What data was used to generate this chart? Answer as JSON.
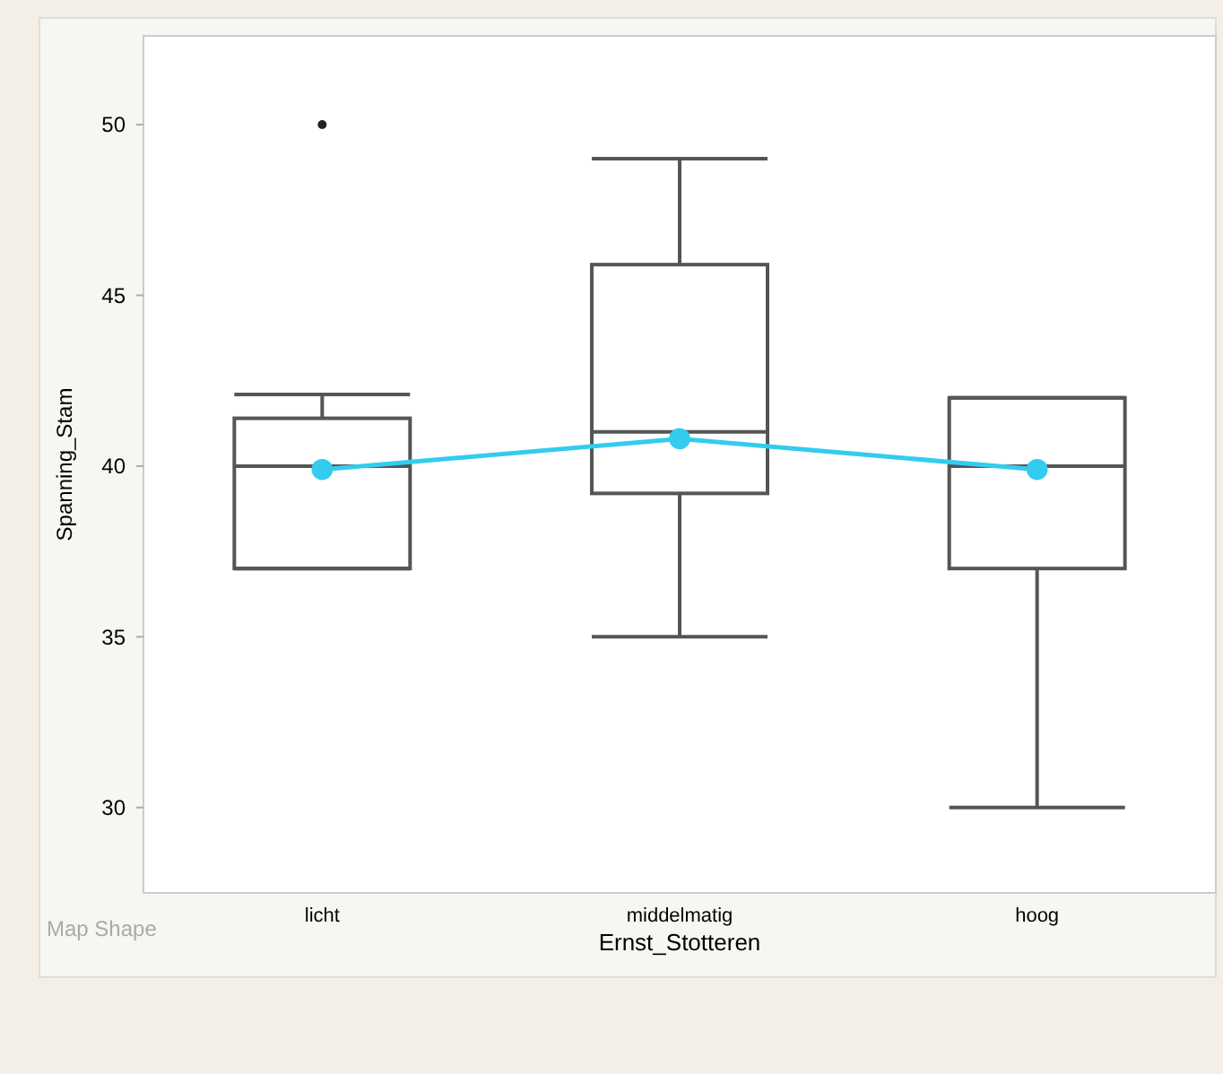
{
  "chart_data": {
    "type": "box",
    "xlabel": "Ernst_Stotteren",
    "ylabel": "Spanning_Stam",
    "categories": [
      "licht",
      "middelmatig",
      "hoog"
    ],
    "boxes": [
      {
        "low": 37,
        "q1": 37,
        "median": 40,
        "q3": 41.4,
        "high": 42.1,
        "outliers": [
          50
        ]
      },
      {
        "low": 35,
        "q1": 39.2,
        "median": 41,
        "q3": 45.9,
        "high": 49
      },
      {
        "low": 30,
        "q1": 37,
        "median": 40,
        "q3": 42,
        "high": 42
      }
    ],
    "series": [
      {
        "type": "line",
        "color": "#33ccee",
        "values": [
          39.9,
          40.8,
          39.9
        ]
      }
    ],
    "marker": "circle",
    "ylim": [
      27.5,
      52.6
    ],
    "yticks": [
      30,
      35,
      40,
      45,
      50
    ],
    "grid": false,
    "annotations": [
      "Map Shape"
    ]
  }
}
